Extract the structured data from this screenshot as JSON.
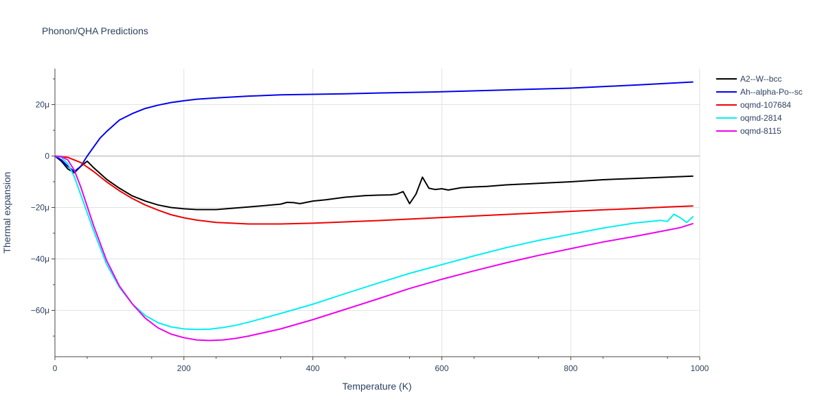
{
  "chart_data": {
    "type": "line",
    "title": "Phonon/QHA Predictions",
    "xlabel": "Temperature (K)",
    "ylabel": "Thermal expansion",
    "xlim": [
      0,
      1000
    ],
    "ylim": [
      -78,
      34
    ],
    "x_ticks": [
      0,
      200,
      400,
      600,
      800,
      1000
    ],
    "y_ticks": [
      -60,
      -40,
      -20,
      0,
      20
    ],
    "y_tick_labels": [
      "−60μ",
      "−40μ",
      "−20μ",
      "0",
      "20μ"
    ],
    "grid": true,
    "legend_position": "top-right",
    "series": [
      {
        "name": "A2--W--bcc",
        "color": "#000000",
        "x": [
          0,
          10,
          20,
          30,
          40,
          50,
          60,
          80,
          100,
          120,
          140,
          160,
          180,
          200,
          220,
          250,
          290,
          300,
          350,
          360,
          370,
          380,
          400,
          420,
          450,
          480,
          500,
          520,
          530,
          540,
          550,
          560,
          570,
          580,
          590,
          600,
          610,
          630,
          650,
          670,
          700,
          750,
          800,
          850,
          900,
          950,
          990
        ],
        "y": [
          0,
          -2,
          -5,
          -6.5,
          -4,
          -2,
          -4.5,
          -9,
          -12.5,
          -15.5,
          -17.5,
          -19,
          -20,
          -20.5,
          -20.8,
          -20.8,
          -20,
          -19.8,
          -18.7,
          -18,
          -18.1,
          -18.5,
          -17.5,
          -17,
          -16,
          -15.4,
          -15.2,
          -15.1,
          -14.8,
          -13.8,
          -18.5,
          -14.8,
          -8.2,
          -12.5,
          -13,
          -12.7,
          -13.2,
          -12.3,
          -12,
          -11.8,
          -11.2,
          -10.6,
          -10,
          -9.2,
          -8.7,
          -8.2,
          -7.8
        ]
      },
      {
        "name": "Ah--alpha-Po--sc",
        "color": "#0000ee",
        "x": [
          0,
          10,
          20,
          30,
          40,
          50,
          60,
          70,
          80,
          100,
          120,
          140,
          160,
          180,
          200,
          220,
          250,
          300,
          350,
          400,
          450,
          500,
          600,
          700,
          800,
          900,
          990
        ],
        "y": [
          0,
          -1.5,
          -4,
          -6,
          -4,
          0,
          3.5,
          7,
          9.5,
          14,
          16.5,
          18.5,
          19.8,
          20.8,
          21.5,
          22.1,
          22.6,
          23.3,
          23.8,
          24.0,
          24.2,
          24.5,
          25.0,
          25.7,
          26.4,
          27.6,
          28.8
        ]
      },
      {
        "name": "oqmd-107684",
        "color": "#ee0000",
        "x": [
          0,
          20,
          40,
          60,
          80,
          100,
          120,
          140,
          160,
          180,
          200,
          220,
          250,
          300,
          350,
          400,
          450,
          500,
          550,
          600,
          650,
          700,
          750,
          800,
          850,
          900,
          950,
          990
        ],
        "y": [
          0,
          -0.5,
          -2.5,
          -6,
          -10,
          -13.5,
          -16.5,
          -19,
          -21,
          -22.8,
          -24,
          -24.9,
          -25.8,
          -26.4,
          -26.4,
          -26.1,
          -25.6,
          -25.1,
          -24.5,
          -23.9,
          -23.3,
          -22.7,
          -22.1,
          -21.5,
          -20.9,
          -20.4,
          -19.8,
          -19.4
        ]
      },
      {
        "name": "oqmd-2814",
        "color": "#00f0f0",
        "x": [
          0,
          10,
          20,
          30,
          40,
          60,
          80,
          100,
          120,
          140,
          160,
          180,
          200,
          220,
          240,
          260,
          280,
          300,
          350,
          400,
          450,
          500,
          550,
          600,
          650,
          700,
          750,
          800,
          850,
          900,
          940,
          950,
          960,
          970,
          980,
          990
        ],
        "y": [
          0,
          -0.5,
          -3,
          -8,
          -15,
          -29,
          -42,
          -51,
          -57.5,
          -62,
          -64.8,
          -66.4,
          -67.2,
          -67.4,
          -67.3,
          -66.7,
          -65.8,
          -64.6,
          -61.2,
          -57.6,
          -53.5,
          -49.5,
          -45.6,
          -42.2,
          -38.8,
          -35.6,
          -32.8,
          -30.4,
          -28,
          -26,
          -25,
          -25.4,
          -22.6,
          -24,
          -25.8,
          -23.4
        ]
      },
      {
        "name": "oqmd-8115",
        "color": "#ee00ee",
        "x": [
          0,
          10,
          20,
          30,
          40,
          60,
          80,
          100,
          120,
          140,
          160,
          180,
          200,
          220,
          240,
          260,
          280,
          300,
          350,
          400,
          450,
          500,
          550,
          600,
          650,
          700,
          750,
          800,
          850,
          900,
          950,
          970,
          990
        ],
        "y": [
          0,
          -0.2,
          -1.5,
          -5.5,
          -12,
          -27,
          -40.5,
          -50.5,
          -57.5,
          -63,
          -66.8,
          -69.2,
          -70.6,
          -71.5,
          -71.7,
          -71.5,
          -70.9,
          -70,
          -67.2,
          -63.6,
          -59.6,
          -55.6,
          -51.5,
          -47.9,
          -44.6,
          -41.5,
          -38.6,
          -36,
          -33.4,
          -31.2,
          -28.8,
          -27.8,
          -26.2
        ]
      }
    ]
  }
}
